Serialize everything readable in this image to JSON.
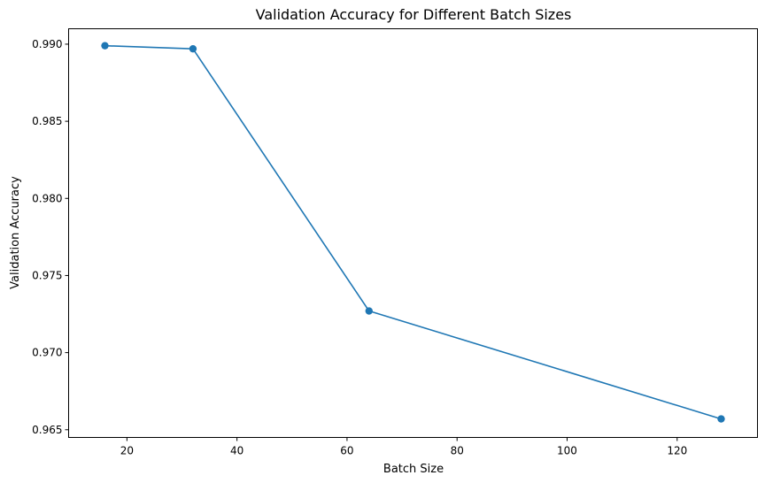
{
  "chart_data": {
    "type": "line",
    "title": "Validation Accuracy for Different Batch Sizes",
    "xlabel": "Batch Size",
    "ylabel": "Validation Accuracy",
    "xlim": [
      9.4,
      134.6
    ],
    "ylim": [
      0.9645,
      0.991
    ],
    "xticks": [
      20,
      40,
      60,
      80,
      100,
      120
    ],
    "xtick_labels": [
      "20",
      "40",
      "60",
      "80",
      "100",
      "120"
    ],
    "yticks": [
      0.965,
      0.97,
      0.975,
      0.98,
      0.985,
      0.99
    ],
    "ytick_labels": [
      "0.965",
      "0.970",
      "0.975",
      "0.980",
      "0.985",
      "0.990"
    ],
    "grid": false,
    "series": [
      {
        "x": [
          16,
          32,
          64,
          128
        ],
        "y": [
          0.9899,
          0.9897,
          0.9727,
          0.9657
        ],
        "color": "#1f77b4",
        "marker": "circle"
      }
    ]
  }
}
